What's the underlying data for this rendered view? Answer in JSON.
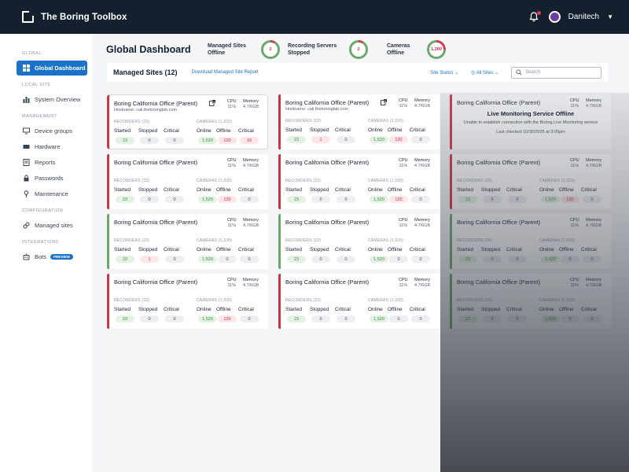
{
  "app": {
    "title": "The Boring Toolbox",
    "user": "Danitech"
  },
  "sidebar": {
    "sections": [
      {
        "label": "GLOBAL",
        "items": [
          {
            "label": "Global Dashboard",
            "icon": "grid-icon",
            "active": true
          }
        ]
      },
      {
        "label": "LOCAL SITE",
        "items": [
          {
            "label": "System Overview",
            "icon": "bar-chart-icon"
          }
        ]
      },
      {
        "label": "MANAGEMENT",
        "items": [
          {
            "label": "Device groups",
            "icon": "device-groups-icon"
          },
          {
            "label": "Hardware",
            "icon": "hardware-icon"
          },
          {
            "label": "Reports",
            "icon": "reports-icon"
          },
          {
            "label": "Passwords",
            "icon": "lock-icon"
          },
          {
            "label": "Maintenance",
            "icon": "wrench-icon"
          }
        ]
      },
      {
        "label": "CONFIGURATION",
        "items": [
          {
            "label": "Managed sites",
            "icon": "link-icon"
          }
        ]
      },
      {
        "label": "INTEGRATIONS",
        "items": [
          {
            "label": "Bots",
            "icon": "bot-icon",
            "badge": "PREVIEW"
          }
        ]
      }
    ]
  },
  "header": {
    "title": "Global Dashboard",
    "stats": [
      {
        "label": "Managed Sites Offline",
        "value": "2"
      },
      {
        "label": "Recording Servers Stopped",
        "value": "2"
      },
      {
        "label": "Cameras Offline",
        "value": "1,200"
      }
    ]
  },
  "toolbar": {
    "title": "Managed Sites (12)",
    "download_link": "Download Managed Site Report",
    "status_filter": "Site Status",
    "sites_filter": "All Sites",
    "search_placeholder": "Search"
  },
  "card_labels": {
    "cpu": "CPU",
    "memory": "Memory",
    "recorders_group": "RECORDERS (23)",
    "cameras_group": "CAMERAS (1,320)",
    "started": "Started",
    "stopped": "Stopped",
    "critical": "Critical",
    "online": "Online",
    "offline": "Offline"
  },
  "offline_notice": {
    "title": "Live Monitoring Service Offline",
    "message": "Unable to establish connection with the Boring Live Monitoring service",
    "last_checked": "Last checked 10/30/2025 at 3:05pm"
  },
  "cards": [
    {
      "name": "Boring California Office (Parent)",
      "hostname": "Hostname: cali.theboringlab.com",
      "cpu": "11%",
      "memory": "4.7/6GB",
      "status": "error",
      "highlight": true,
      "started": "23",
      "stopped": "0",
      "rec_critical": "0",
      "online": "1,520",
      "offline": "120",
      "cam_critical": "10"
    },
    {
      "name": "Boring California Office (Parent)",
      "hostname": "Hostname: cali.theboringlab.com",
      "cpu": "11%",
      "memory": "4.7/6GB",
      "status": "error",
      "started": "23",
      "stopped": "1",
      "rec_critical": "0",
      "online": "1,520",
      "offline": "120",
      "cam_critical": "0"
    },
    {
      "name": "Boring California Office (Parent)",
      "cpu": "11%",
      "memory": "4.7/6GB",
      "status": "error"
    },
    {
      "name": "Boring California Office (Parent)",
      "cpu": "11%",
      "memory": "4.7/6GB",
      "status": "error",
      "started": "23",
      "stopped": "0",
      "rec_critical": "0",
      "online": "1,520",
      "offline": "120",
      "cam_critical": "0"
    },
    {
      "name": "Boring California Office (Parent)",
      "cpu": "11%",
      "memory": "4.7/6GB",
      "status": "error",
      "started": "23",
      "stopped": "0",
      "rec_critical": "0",
      "online": "1,520",
      "offline": "120",
      "cam_critical": "0"
    },
    {
      "name": "Boring California Office (Parent)",
      "cpu": "11%",
      "memory": "4.7/6GB",
      "status": "error",
      "started": "23",
      "stopped": "0",
      "rec_critical": "0",
      "online": "1,520",
      "offline": "120",
      "cam_critical": "0"
    },
    {
      "name": "Boring California Office (Parent)",
      "cpu": "11%",
      "memory": "4.7/6GB",
      "status": "ok",
      "started": "23",
      "stopped": "1",
      "rec_critical": "0",
      "online": "1,520",
      "offline": "0",
      "cam_critical": "0"
    },
    {
      "name": "Boring California Office (Parent)",
      "cpu": "11%",
      "memory": "4.7/6GB",
      "status": "ok",
      "started": "23",
      "stopped": "0",
      "rec_critical": "0",
      "online": "1,520",
      "offline": "0",
      "cam_critical": "0"
    },
    {
      "name": "Boring California Office (Parent)",
      "cpu": "11%",
      "memory": "4.7/6GB",
      "status": "ok",
      "started": "23",
      "stopped": "0",
      "rec_critical": "0",
      "online": "1,520",
      "offline": "0",
      "cam_critical": "0"
    },
    {
      "name": "Boring California Office (Parent)",
      "cpu": "11%",
      "memory": "4.7/6GB",
      "status": "error",
      "started": "23",
      "stopped": "0",
      "rec_critical": "0",
      "online": "1,520",
      "offline": "120",
      "cam_critical": "0"
    },
    {
      "name": "Boring California Office (Parent)",
      "cpu": "11%",
      "memory": "4.7/6GB",
      "status": "error",
      "started": "23",
      "stopped": "0",
      "rec_critical": "0",
      "online": "1,520",
      "offline": "0",
      "cam_critical": "0"
    },
    {
      "name": "Boring California Office (Parent)",
      "cpu": "11%",
      "memory": "4.7/6GB",
      "status": "ok",
      "started": "23",
      "stopped": "0",
      "rec_critical": "0",
      "online": "1,520",
      "offline": "0",
      "cam_critical": "0"
    }
  ],
  "colors": {
    "topbar": "#14202e",
    "accent": "#1a73c8",
    "error": "#cf3346",
    "ok": "#6aa86b"
  }
}
